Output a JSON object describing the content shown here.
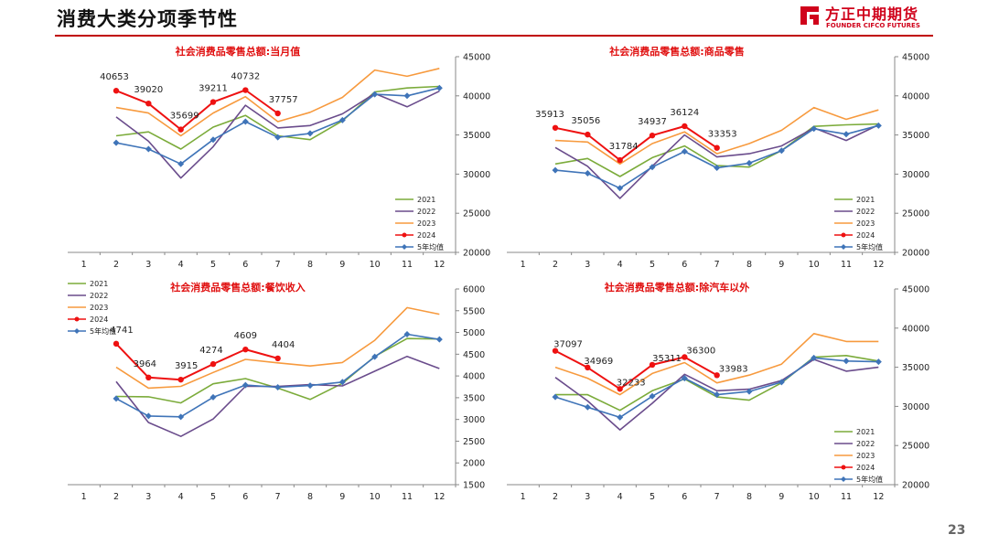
{
  "header": {
    "title": "消费大类分项季节性"
  },
  "logo": {
    "cn": "方正中期期货",
    "en": "FOUNDER CIFCO FUTURES",
    "color": "#d0021b"
  },
  "page_number": "23",
  "colors": {
    "2021": "#7bab3a",
    "2022": "#6a4c8c",
    "2023": "#f79a3e",
    "2024": "#ee1111",
    "5年均值": "#3f74b8",
    "chart_title": "#e01010"
  },
  "chart_data": [
    {
      "type": "line",
      "title": "社会消费品零售总额:当月值",
      "x": [
        1,
        2,
        3,
        4,
        5,
        6,
        7,
        8,
        9,
        10,
        11,
        12
      ],
      "ylim": [
        20000,
        45000
      ],
      "yticks": [
        20000,
        25000,
        30000,
        35000,
        40000,
        45000
      ],
      "legend_position": "inside-bottom-right",
      "series": [
        {
          "name": "2021",
          "values": [
            null,
            34900,
            35400,
            33200,
            36000,
            37500,
            34900,
            34400,
            36800,
            40500,
            41000,
            41200
          ]
        },
        {
          "name": "2022",
          "values": [
            null,
            37300,
            34200,
            29500,
            33500,
            38800,
            35900,
            36200,
            37700,
            40300,
            38600,
            40600
          ]
        },
        {
          "name": "2023",
          "values": [
            null,
            38500,
            37800,
            34900,
            37800,
            39900,
            36700,
            37900,
            39800,
            43300,
            42500,
            43500
          ]
        },
        {
          "name": "2024",
          "values": [
            null,
            40653,
            39020,
            35699,
            39211,
            40732,
            37757,
            null,
            null,
            null,
            null,
            null
          ],
          "labels": true
        },
        {
          "name": "5年均值",
          "values": [
            null,
            34000,
            33200,
            31300,
            34400,
            36700,
            34700,
            35200,
            36900,
            40200,
            40000,
            41000
          ]
        }
      ]
    },
    {
      "type": "line",
      "title": "社会消费品零售总额:商品零售",
      "x": [
        1,
        2,
        3,
        4,
        5,
        6,
        7,
        8,
        9,
        10,
        11,
        12
      ],
      "ylim": [
        20000,
        45000
      ],
      "yticks": [
        20000,
        25000,
        30000,
        35000,
        40000,
        45000
      ],
      "legend_position": "inside-bottom-right",
      "series": [
        {
          "name": "2021",
          "values": [
            null,
            31300,
            32000,
            29700,
            32100,
            33600,
            31100,
            30900,
            33000,
            36100,
            36300,
            36400
          ]
        },
        {
          "name": "2022",
          "values": [
            null,
            33400,
            31000,
            26900,
            31000,
            35000,
            32200,
            32600,
            33600,
            35900,
            34300,
            36300
          ]
        },
        {
          "name": "2023",
          "values": [
            null,
            34300,
            34100,
            31300,
            33900,
            35400,
            32600,
            33900,
            35600,
            38500,
            37000,
            38200
          ]
        },
        {
          "name": "2024",
          "values": [
            null,
            35913,
            35056,
            31784,
            34937,
            36124,
            33353,
            null,
            null,
            null,
            null,
            null
          ],
          "labels": true
        },
        {
          "name": "5年均值",
          "values": [
            null,
            30500,
            30100,
            28200,
            30900,
            32900,
            30800,
            31400,
            33000,
            35800,
            35100,
            36200
          ]
        }
      ]
    },
    {
      "type": "line",
      "title": "社会消费品零售总额:餐饮收入",
      "x": [
        1,
        2,
        3,
        4,
        5,
        6,
        7,
        8,
        9,
        10,
        11,
        12
      ],
      "ylim": [
        1500,
        6000
      ],
      "yticks": [
        1500,
        2000,
        2500,
        3000,
        3500,
        4000,
        4500,
        5000,
        5500,
        6000
      ],
      "legend_position": "inside-top-left",
      "series": [
        {
          "name": "2021",
          "values": [
            null,
            3530,
            3520,
            3380,
            3820,
            3940,
            3720,
            3460,
            3830,
            4450,
            4860,
            4850
          ]
        },
        {
          "name": "2022",
          "values": [
            null,
            3870,
            2930,
            2610,
            3010,
            3760,
            3760,
            3800,
            3770,
            4110,
            4450,
            4170
          ]
        },
        {
          "name": "2023",
          "values": [
            null,
            4200,
            3720,
            3760,
            4080,
            4380,
            4300,
            4230,
            4310,
            4820,
            5570,
            5420
          ]
        },
        {
          "name": "2024",
          "values": [
            null,
            4741,
            3964,
            3915,
            4274,
            4609,
            4404,
            null,
            null,
            null,
            null,
            null
          ],
          "labels": true
        },
        {
          "name": "5年均值",
          "values": [
            null,
            3480,
            3080,
            3060,
            3510,
            3790,
            3740,
            3780,
            3860,
            4440,
            4960,
            4840
          ]
        }
      ]
    },
    {
      "type": "line",
      "title": "社会消费品零售总额:除汽车以外",
      "x": [
        1,
        2,
        3,
        4,
        5,
        6,
        7,
        8,
        9,
        10,
        11,
        12
      ],
      "ylim": [
        20000,
        45000
      ],
      "yticks": [
        20000,
        25000,
        30000,
        35000,
        40000,
        45000
      ],
      "legend_position": "inside-bottom-right",
      "series": [
        {
          "name": "2021",
          "values": [
            null,
            31500,
            31500,
            29500,
            32000,
            33500,
            31200,
            30800,
            33000,
            36300,
            36500,
            35800
          ]
        },
        {
          "name": "2022",
          "values": [
            null,
            33700,
            30700,
            27000,
            30400,
            34100,
            32000,
            32200,
            33300,
            36000,
            34500,
            35000
          ]
        },
        {
          "name": "2023",
          "values": [
            null,
            35000,
            33600,
            31500,
            34200,
            35600,
            33000,
            34000,
            35400,
            39300,
            38300,
            38300
          ]
        },
        {
          "name": "2024",
          "values": [
            null,
            37097,
            34969,
            32233,
            35311,
            36300,
            33983,
            null,
            null,
            null,
            null,
            null
          ],
          "labels": true
        },
        {
          "name": "5年均值",
          "values": [
            null,
            31200,
            29900,
            28600,
            31300,
            33600,
            31500,
            31900,
            33100,
            36200,
            35800,
            35700
          ]
        }
      ]
    }
  ]
}
